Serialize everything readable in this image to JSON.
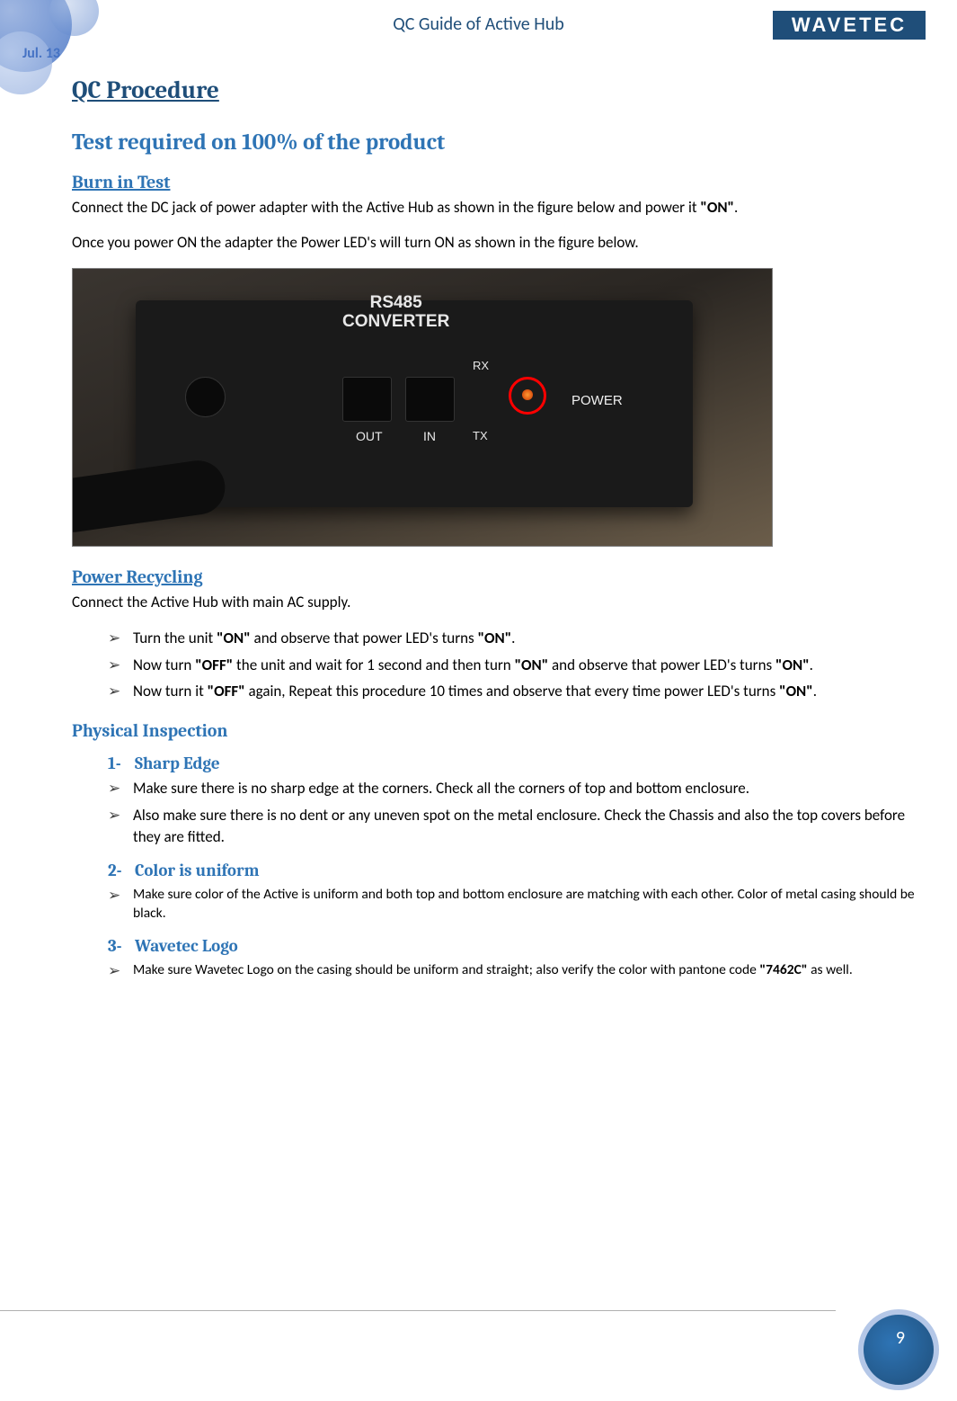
{
  "header": {
    "title": "QC Guide of Active Hub",
    "logo_text": "WAVETEC",
    "date_badge": "Jul. 13"
  },
  "colors": {
    "heading_dark": "#1f4e79",
    "heading_blue": "#2e74b5",
    "body_text": "#000000",
    "led_ring": "#ff0000",
    "device_bg": "#1a1a1a"
  },
  "main": {
    "h1": "QC Procedure",
    "h2": "Test required on 100% of the product",
    "burn": {
      "title": "Burn in Test",
      "p1_pre": "Connect the DC jack of power adapter with the Active Hub as shown in the figure below and power it ",
      "p1_bold": "\"ON\"",
      "p1_post": ".",
      "p2": "Once you power ON the adapter the Power LED's will turn ON as shown in the figure below."
    },
    "figure": {
      "label_line1": "RS485",
      "label_line2": "CONVERTER",
      "out": "OUT",
      "in": "IN",
      "rx": "RX",
      "tx": "TX",
      "power": "POWER"
    },
    "power_recycling": {
      "title": "Power Recycling",
      "intro": "Connect the Active Hub with main AC supply.",
      "items": [
        {
          "pre": "Turn the unit ",
          "b1": "\"ON\"",
          "mid": " and observe that power LED's turns ",
          "b2": "\"ON\"",
          "post": "."
        },
        {
          "pre": "Now turn ",
          "b1": "\"OFF\"",
          "mid": " the unit and wait for 1 second and then turn ",
          "b2": "\"ON\"",
          "mid2": " and observe that power LED's turns ",
          "b3": "\"ON\"",
          "post": "."
        },
        {
          "pre": "Now turn it ",
          "b1": "\"OFF\"",
          "mid": " again, Repeat this procedure 10 times and observe that every time power LED's turns ",
          "b2": "\"ON\"",
          "post": "."
        }
      ]
    },
    "physical": {
      "title": "Physical Inspection",
      "sections": [
        {
          "num": "1-",
          "title": "Sharp Edge",
          "items": [
            "Make sure there is no sharp edge at the corners. Check all the corners of top and bottom enclosure.",
            "Also make sure there is no dent or any uneven spot on the metal enclosure. Check the Chassis and also the top covers before they are fitted."
          ]
        },
        {
          "num": "2-",
          "title": "Color is uniform",
          "items": [
            "Make sure color of the Active is uniform and both top and bottom enclosure are matching with each other. Color of metal casing should be black."
          ]
        },
        {
          "num": "3-",
          "title": "Wavetec Logo",
          "items_rich": [
            {
              "pre": "Make sure Wavetec Logo on the casing should be uniform and straight; also verify the color with pantone code ",
              "b1": "\"7462C\"",
              "post": " as well."
            }
          ]
        }
      ]
    }
  },
  "footer": {
    "page_number": "9"
  }
}
